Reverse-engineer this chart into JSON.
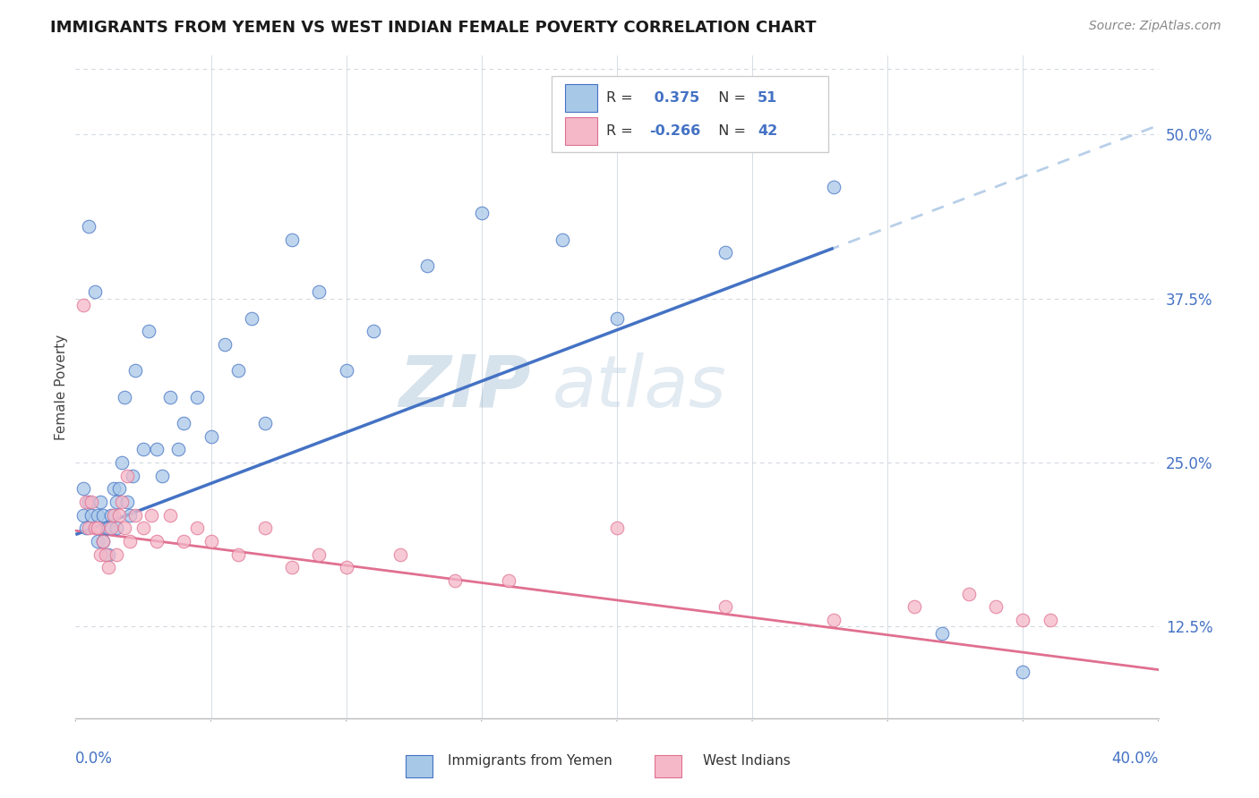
{
  "title": "IMMIGRANTS FROM YEMEN VS WEST INDIAN FEMALE POVERTY CORRELATION CHART",
  "source": "Source: ZipAtlas.com",
  "ylabel": "Female Poverty",
  "ytick_positions": [
    0.125,
    0.25,
    0.375,
    0.5
  ],
  "ytick_labels": [
    "12.5%",
    "25.0%",
    "37.5%",
    "50.0%"
  ],
  "xlim": [
    0.0,
    0.4
  ],
  "ylim": [
    0.055,
    0.56
  ],
  "blue_scatter_color": "#a8c8e8",
  "blue_line_color": "#4472c4",
  "pink_scatter_color": "#f4b8c8",
  "pink_line_color": "#e07090",
  "dashed_line_color": "#b8cfe8",
  "tick_color": "#4472c4",
  "grid_color": "#d0d8e0",
  "watermark_color": "#c8dce8",
  "blue_intercept": 0.195,
  "blue_slope": 0.78,
  "pink_intercept": 0.198,
  "pink_slope": -0.265,
  "blue_scatter_x": [
    0.003,
    0.003,
    0.004,
    0.005,
    0.005,
    0.006,
    0.007,
    0.008,
    0.008,
    0.009,
    0.01,
    0.01,
    0.011,
    0.012,
    0.012,
    0.013,
    0.014,
    0.015,
    0.015,
    0.016,
    0.017,
    0.018,
    0.019,
    0.02,
    0.021,
    0.022,
    0.025,
    0.027,
    0.03,
    0.032,
    0.035,
    0.038,
    0.04,
    0.045,
    0.05,
    0.055,
    0.06,
    0.065,
    0.07,
    0.08,
    0.09,
    0.1,
    0.11,
    0.13,
    0.15,
    0.18,
    0.2,
    0.24,
    0.28,
    0.32,
    0.35
  ],
  "blue_scatter_y": [
    0.21,
    0.23,
    0.2,
    0.22,
    0.43,
    0.21,
    0.38,
    0.19,
    0.21,
    0.22,
    0.19,
    0.21,
    0.2,
    0.18,
    0.2,
    0.21,
    0.23,
    0.2,
    0.22,
    0.23,
    0.25,
    0.3,
    0.22,
    0.21,
    0.24,
    0.32,
    0.26,
    0.35,
    0.26,
    0.24,
    0.3,
    0.26,
    0.28,
    0.3,
    0.27,
    0.34,
    0.32,
    0.36,
    0.28,
    0.42,
    0.38,
    0.32,
    0.35,
    0.4,
    0.44,
    0.42,
    0.36,
    0.41,
    0.46,
    0.12,
    0.09
  ],
  "pink_scatter_x": [
    0.003,
    0.004,
    0.005,
    0.006,
    0.007,
    0.008,
    0.009,
    0.01,
    0.011,
    0.012,
    0.013,
    0.014,
    0.015,
    0.016,
    0.017,
    0.018,
    0.019,
    0.02,
    0.022,
    0.025,
    0.028,
    0.03,
    0.035,
    0.04,
    0.045,
    0.05,
    0.06,
    0.07,
    0.08,
    0.09,
    0.1,
    0.12,
    0.14,
    0.16,
    0.2,
    0.24,
    0.28,
    0.31,
    0.33,
    0.34,
    0.35,
    0.36
  ],
  "pink_scatter_y": [
    0.37,
    0.22,
    0.2,
    0.22,
    0.2,
    0.2,
    0.18,
    0.19,
    0.18,
    0.17,
    0.2,
    0.21,
    0.18,
    0.21,
    0.22,
    0.2,
    0.24,
    0.19,
    0.21,
    0.2,
    0.21,
    0.19,
    0.21,
    0.19,
    0.2,
    0.19,
    0.18,
    0.2,
    0.17,
    0.18,
    0.17,
    0.18,
    0.16,
    0.16,
    0.2,
    0.14,
    0.13,
    0.14,
    0.15,
    0.14,
    0.13,
    0.13
  ]
}
